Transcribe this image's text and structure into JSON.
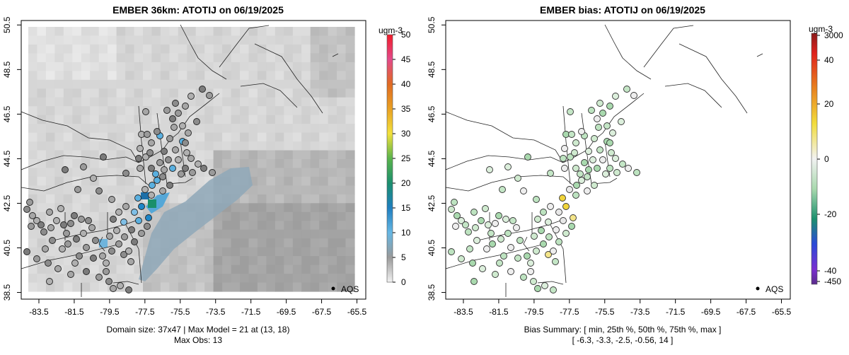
{
  "left_panel": {
    "title": "EMBER 36km: ATOTIJ on 06/19/2025",
    "caption_line1": "Domain size: 37x47 | Max Model = 21 at (13, 18)",
    "caption_line2": "Max Obs: 13",
    "legend_label": "AQS",
    "colorbar_unit": "ugm-3",
    "colorbar_ticks": [
      "0",
      "5",
      "10",
      "15",
      "20",
      "25",
      "30",
      "35",
      "40",
      "45",
      "50"
    ]
  },
  "right_panel": {
    "title": "EMBER bias: ATOTIJ on 06/19/2025",
    "caption_line1": "Bias Summary: [ min, 25th %, 50th %, 75th %, max ]",
    "caption_line2": "[ -6.3,   -3.3,   -2.5,   -0.56,   14 ]",
    "legend_label": "AQS",
    "colorbar_unit": "ugm-3",
    "colorbar_ticks": [
      "3000",
      "40",
      "20",
      "0",
      "-20",
      "-40",
      "-450"
    ]
  },
  "x_ticks": [
    "-83.5",
    "-81.5",
    "-79.5",
    "-77.5",
    "-75.5",
    "-73.5",
    "-71.5",
    "-69.5",
    "-67.5",
    "-65.5"
  ],
  "y_ticks": [
    "38.5",
    "40.5",
    "42.5",
    "44.5",
    "46.5",
    "48.5",
    "50.5"
  ],
  "map_data": {
    "lon_range": [
      -84.5,
      -65
    ],
    "lat_range": [
      38.2,
      50.7
    ],
    "grid_size": "37x47",
    "max_model": 21,
    "max_model_cell": "(13, 18)",
    "max_obs": 13,
    "bias_summary": {
      "min": -6.3,
      "p25": -3.3,
      "p50": -2.5,
      "p75": -0.56,
      "max": 14
    }
  }
}
